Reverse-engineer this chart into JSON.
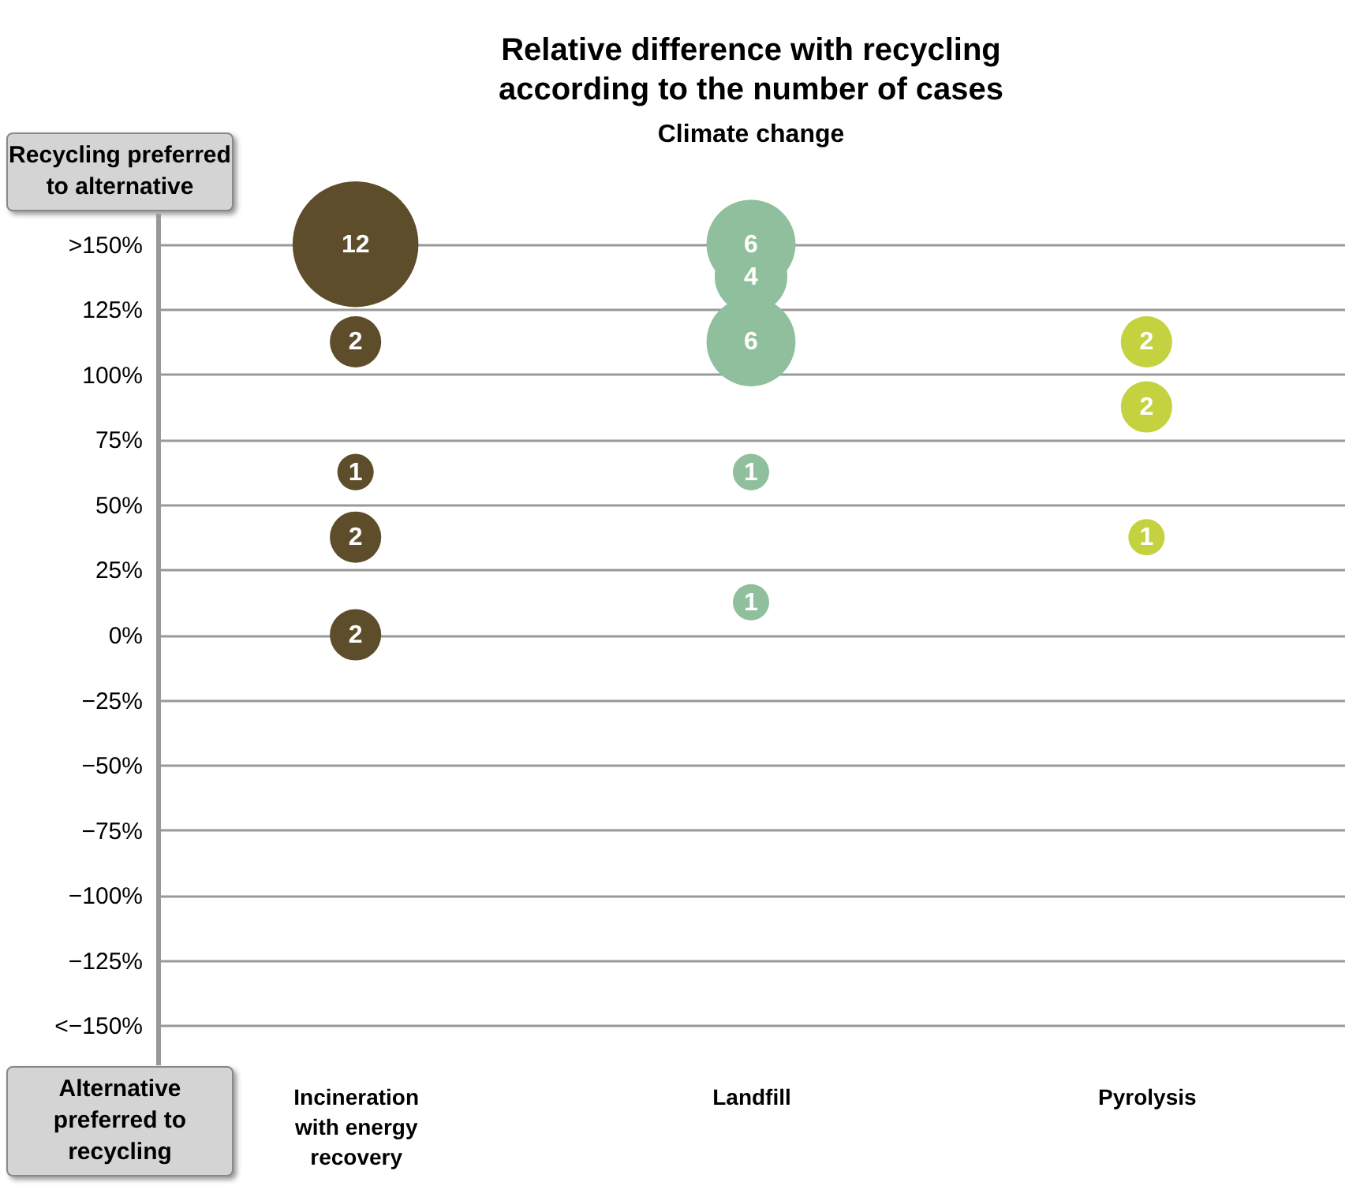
{
  "chart_data": {
    "type": "bubble",
    "title": "Relative difference with recycling according to the number of cases",
    "subtitle": "Climate change",
    "categories": [
      "Incineration with energy recovery",
      "Landfill",
      "Pyrolysis"
    ],
    "series": [
      {
        "color": "#5e4d2b",
        "x": [
          "Incineration with energy recovery",
          "Incineration with energy recovery",
          "Incineration with energy recovery",
          "Incineration with energy recovery",
          "Incineration with energy recovery"
        ],
        "values": [
          150,
          112.5,
          62.5,
          37.5,
          0
        ],
        "sizes": [
          12,
          2,
          1,
          2,
          2
        ],
        "value_labels": [
          "12",
          "2",
          "1",
          "2",
          "2"
        ]
      },
      {
        "color": "#8fbf9c",
        "x": [
          "Landfill",
          "Landfill",
          "Landfill",
          "Landfill",
          "Landfill"
        ],
        "values": [
          150,
          112.5,
          137.5,
          62.5,
          12.5
        ],
        "sizes": [
          6,
          6,
          4,
          1,
          1
        ],
        "value_labels": [
          "6",
          "6",
          "4",
          "1",
          "1"
        ]
      },
      {
        "color": "#c5d23f",
        "x": [
          "Pyrolysis",
          "Pyrolysis",
          "Pyrolysis"
        ],
        "values": [
          112.5,
          87.5,
          37.5
        ],
        "sizes": [
          2,
          2,
          1
        ],
        "value_labels": [
          "2",
          "2",
          "1"
        ]
      }
    ],
    "ylim": [
      -165,
      162
    ],
    "yticks": [
      {
        "value": 150,
        "label": ">150%"
      },
      {
        "value": 125,
        "label": "125%"
      },
      {
        "value": 100,
        "label": "100%"
      },
      {
        "value": 75,
        "label": "75%"
      },
      {
        "value": 50,
        "label": "50%"
      },
      {
        "value": 25,
        "label": "25%"
      },
      {
        "value": 0,
        "label": "0%"
      },
      {
        "value": -25,
        "label": "−25%"
      },
      {
        "value": -50,
        "label": "−50%"
      },
      {
        "value": -75,
        "label": "−75%"
      },
      {
        "value": -100,
        "label": "−100%"
      },
      {
        "value": -125,
        "label": "−125%"
      },
      {
        "value": -150,
        "label": "<−150%"
      }
    ],
    "annotations": [
      "Recycling preferred to alternative",
      "Alternative preferred to recycling"
    ],
    "grid": "y",
    "legend": false
  }
}
